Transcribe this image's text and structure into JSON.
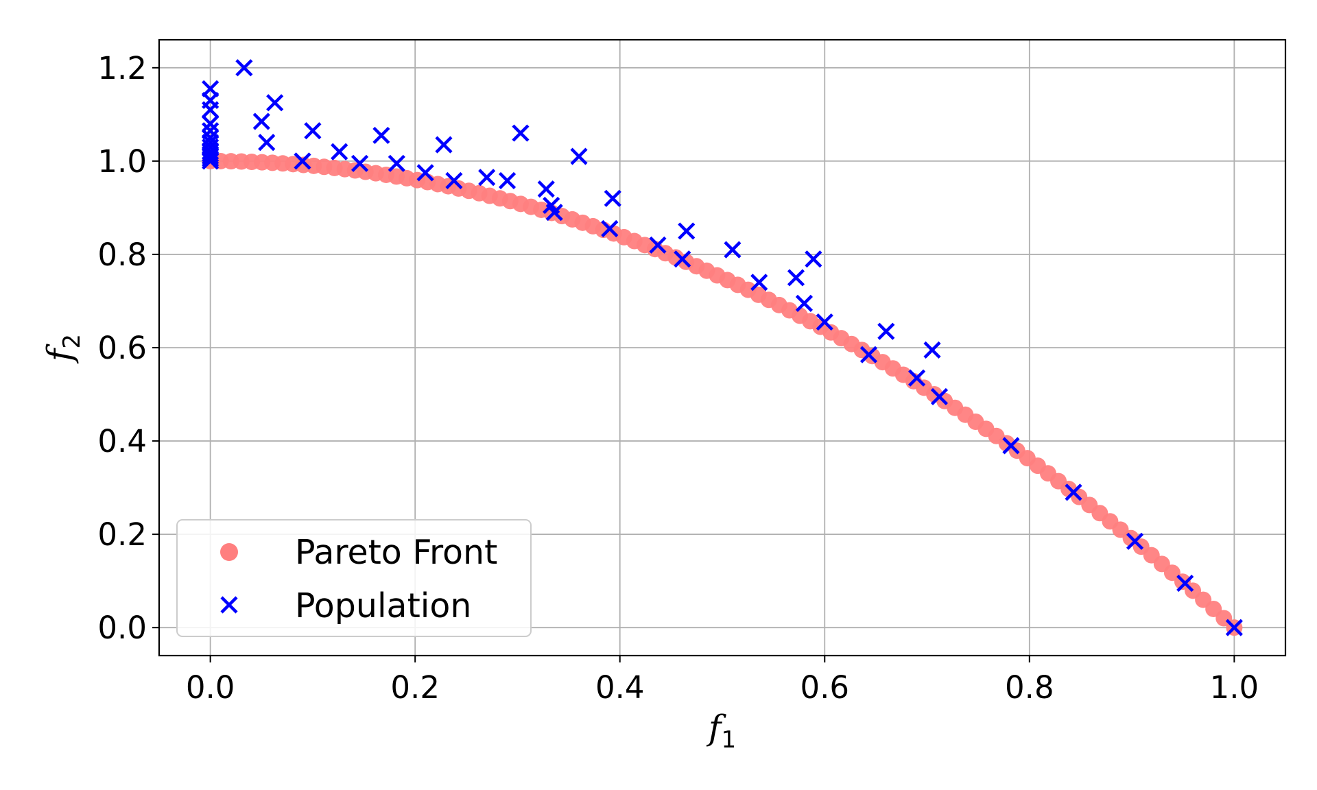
{
  "chart_data": {
    "type": "scatter",
    "title": "",
    "xlabel": {
      "base": "f",
      "sub": "1"
    },
    "ylabel": {
      "base": "f",
      "sub": "2"
    },
    "xlim": [
      -0.05,
      1.05
    ],
    "ylim": [
      -0.06,
      1.26
    ],
    "xticks": [
      "0.0",
      "0.2",
      "0.4",
      "0.6",
      "0.8",
      "1.0"
    ],
    "yticks": [
      "0.0",
      "0.2",
      "0.4",
      "0.6",
      "0.8",
      "1.0",
      "1.2"
    ],
    "grid": true,
    "legend_position": "lower-left",
    "series": [
      {
        "name": "Pareto Front",
        "marker": "circle",
        "color": "#ff7f7f",
        "curve": "f2 = 1 - f1^2",
        "points": 100
      },
      {
        "name": "Population",
        "marker": "x",
        "color": "#0000ff",
        "x": [
          0.0,
          0.0,
          0.0,
          0.0,
          0.0,
          0.0,
          0.0,
          0.0,
          0.0,
          0.0,
          0.0,
          0.0,
          0.0,
          0.033,
          0.05,
          0.055,
          0.063,
          0.09,
          0.1,
          0.126,
          0.146,
          0.167,
          0.182,
          0.21,
          0.228,
          0.238,
          0.27,
          0.29,
          0.303,
          0.328,
          0.333,
          0.336,
          0.36,
          0.39,
          0.393,
          0.437,
          0.461,
          0.465,
          0.51,
          0.536,
          0.572,
          0.58,
          0.589,
          0.6,
          0.643,
          0.66,
          0.69,
          0.705,
          0.712,
          0.782,
          0.843,
          0.903,
          0.952,
          1.0
        ],
        "y": [
          1.155,
          1.13,
          1.11,
          1.08,
          1.065,
          1.05,
          1.04,
          1.03,
          1.02,
          1.015,
          1.01,
          1.005,
          1.0,
          1.2,
          1.085,
          1.04,
          1.125,
          1.0,
          1.065,
          1.02,
          0.995,
          1.055,
          0.995,
          0.975,
          1.035,
          0.958,
          0.965,
          0.958,
          1.06,
          0.94,
          0.905,
          0.89,
          1.01,
          0.855,
          0.92,
          0.82,
          0.79,
          0.85,
          0.81,
          0.74,
          0.75,
          0.695,
          0.79,
          0.655,
          0.585,
          0.635,
          0.535,
          0.595,
          0.495,
          0.39,
          0.29,
          0.185,
          0.095,
          0.0
        ]
      }
    ]
  }
}
